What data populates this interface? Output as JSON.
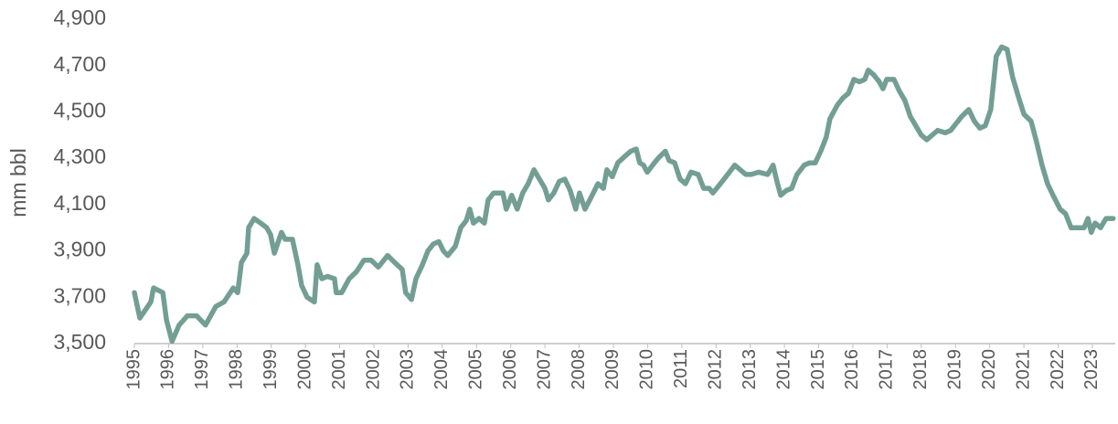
{
  "chart_data": {
    "type": "line",
    "y_axis_label": "mm bbl",
    "x": [
      1995.0,
      1995.16,
      1995.48,
      1995.56,
      1995.83,
      1995.94,
      1996.1,
      1996.31,
      1996.55,
      1996.82,
      1997.08,
      1997.38,
      1997.62,
      1997.89,
      1998.02,
      1998.13,
      1998.29,
      1998.34,
      1998.5,
      1998.69,
      1998.87,
      1998.98,
      1999.09,
      1999.3,
      1999.41,
      1999.62,
      1999.78,
      1999.89,
      2000.05,
      2000.26,
      2000.34,
      2000.48,
      2000.64,
      2000.85,
      2000.9,
      2001.06,
      2001.28,
      2001.49,
      2001.71,
      2001.92,
      2002.13,
      2002.4,
      2002.61,
      2002.83,
      2002.93,
      2003.1,
      2003.23,
      2003.42,
      2003.58,
      2003.74,
      2003.9,
      2004.03,
      2004.16,
      2004.38,
      2004.54,
      2004.7,
      2004.8,
      2004.91,
      2005.07,
      2005.23,
      2005.34,
      2005.5,
      2005.63,
      2005.77,
      2005.87,
      2006.03,
      2006.19,
      2006.35,
      2006.51,
      2006.68,
      2006.84,
      2007.0,
      2007.1,
      2007.26,
      2007.42,
      2007.58,
      2007.74,
      2007.9,
      2008.01,
      2008.17,
      2008.38,
      2008.55,
      2008.71,
      2008.81,
      2008.97,
      2009.13,
      2009.35,
      2009.51,
      2009.67,
      2009.77,
      2009.88,
      2009.99,
      2010.2,
      2010.31,
      2010.52,
      2010.63,
      2010.79,
      2010.95,
      2011.11,
      2011.27,
      2011.48,
      2011.64,
      2011.8,
      2011.91,
      2012.13,
      2012.34,
      2012.55,
      2012.71,
      2012.87,
      2013.03,
      2013.25,
      2013.51,
      2013.67,
      2013.78,
      2013.89,
      2014.05,
      2014.21,
      2014.37,
      2014.58,
      2014.74,
      2014.9,
      2015.06,
      2015.22,
      2015.33,
      2015.55,
      2015.71,
      2015.87,
      2016.03,
      2016.19,
      2016.35,
      2016.45,
      2016.61,
      2016.77,
      2016.88,
      2016.99,
      2017.2,
      2017.36,
      2017.52,
      2017.68,
      2017.84,
      2018.0,
      2018.16,
      2018.32,
      2018.48,
      2018.7,
      2018.86,
      2019.02,
      2019.18,
      2019.39,
      2019.55,
      2019.71,
      2019.87,
      2020.03,
      2020.19,
      2020.35,
      2020.51,
      2020.67,
      2020.83,
      2021.0,
      2021.21,
      2021.37,
      2021.53,
      2021.69,
      2021.85,
      2022.06,
      2022.22,
      2022.38,
      2022.6,
      2022.76,
      2022.87,
      2022.97,
      2023.08,
      2023.24,
      2023.4,
      2023.61
    ],
    "values": [
      3720,
      3610,
      3680,
      3740,
      3720,
      3600,
      3510,
      3580,
      3620,
      3620,
      3580,
      3660,
      3680,
      3740,
      3720,
      3850,
      3890,
      4000,
      4040,
      4020,
      4000,
      3970,
      3890,
      3980,
      3950,
      3950,
      3840,
      3750,
      3700,
      3680,
      3840,
      3780,
      3790,
      3780,
      3720,
      3720,
      3780,
      3810,
      3860,
      3860,
      3830,
      3880,
      3850,
      3820,
      3720,
      3690,
      3780,
      3840,
      3900,
      3930,
      3940,
      3900,
      3880,
      3920,
      4000,
      4030,
      4080,
      4020,
      4040,
      4020,
      4120,
      4150,
      4150,
      4150,
      4080,
      4140,
      4080,
      4150,
      4190,
      4250,
      4210,
      4170,
      4120,
      4150,
      4200,
      4210,
      4160,
      4080,
      4150,
      4080,
      4140,
      4190,
      4170,
      4250,
      4220,
      4280,
      4310,
      4330,
      4340,
      4280,
      4270,
      4240,
      4280,
      4300,
      4330,
      4290,
      4280,
      4210,
      4190,
      4240,
      4230,
      4170,
      4170,
      4150,
      4190,
      4230,
      4270,
      4250,
      4230,
      4230,
      4240,
      4230,
      4270,
      4200,
      4140,
      4160,
      4170,
      4230,
      4270,
      4280,
      4280,
      4330,
      4390,
      4470,
      4530,
      4560,
      4580,
      4640,
      4630,
      4640,
      4680,
      4660,
      4630,
      4600,
      4640,
      4640,
      4590,
      4550,
      4480,
      4440,
      4400,
      4380,
      4400,
      4420,
      4410,
      4420,
      4450,
      4480,
      4510,
      4460,
      4430,
      4440,
      4510,
      4740,
      4780,
      4770,
      4650,
      4570,
      4490,
      4460,
      4370,
      4270,
      4190,
      4140,
      4080,
      4060,
      4000,
      4000,
      4000,
      4040,
      3980,
      4020,
      4000,
      4040,
      4040
    ],
    "color": "#739e94",
    "xlim": [
      1995,
      2023.67
    ],
    "xticks": [
      1995,
      1996,
      1997,
      1998,
      1999,
      2000,
      2001,
      2002,
      2003,
      2004,
      2005,
      2006,
      2007,
      2008,
      2009,
      2010,
      2011,
      2012,
      2013,
      2014,
      2015,
      2016,
      2017,
      2018,
      2019,
      2020,
      2021,
      2022,
      2023
    ],
    "ylim": [
      3500,
      4900
    ],
    "yticks": [
      {
        "value": 3500,
        "label": "3,500"
      },
      {
        "value": 3700,
        "label": "3,700"
      },
      {
        "value": 3900,
        "label": "3,900"
      },
      {
        "value": 4100,
        "label": "4,100"
      },
      {
        "value": 4300,
        "label": "4,300"
      },
      {
        "value": 4500,
        "label": "4,500"
      },
      {
        "value": 4700,
        "label": "4,700"
      },
      {
        "value": 4900,
        "label": "4,900"
      }
    ],
    "grid": false
  }
}
